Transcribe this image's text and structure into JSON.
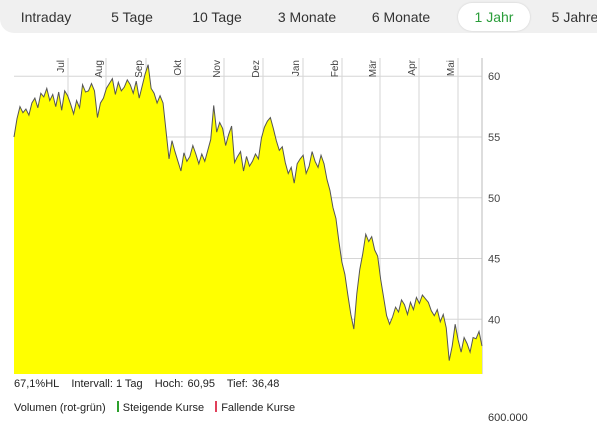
{
  "tabs": [
    {
      "label": "Intraday",
      "active": false
    },
    {
      "label": "5 Tage",
      "active": false
    },
    {
      "label": "10 Tage",
      "active": false
    },
    {
      "label": "3 Monate",
      "active": false
    },
    {
      "label": "6 Monate",
      "active": false
    },
    {
      "label": "1 Jahr",
      "active": true
    },
    {
      "label": "5 Jahre",
      "active": false
    }
  ],
  "stats": {
    "hl": "67,1%HL",
    "interval": "Intervall: 1 Tag",
    "hoch_label": "Hoch:",
    "hoch_value": "60,95",
    "tief_label": "Tief:",
    "tief_value": "36,48"
  },
  "volume": {
    "label": "Volumen (rot-grün)",
    "rising": "Steigende Kurse",
    "falling": "Fallende Kurse",
    "rising_color": "#2ca02c",
    "falling_color": "#e0405a",
    "axis_label": "600.000"
  },
  "colors": {
    "area_fill": "#ffff00",
    "line": "#555555",
    "accent": "#2a9d3a"
  },
  "chart_data": {
    "type": "area",
    "months": [
      "Jul",
      "Aug",
      "Sep",
      "Okt",
      "Nov",
      "Dez",
      "Jan",
      "Feb",
      "Mär",
      "Apr",
      "Mai"
    ],
    "yticks": [
      40,
      45,
      50,
      55,
      60
    ],
    "ylim": [
      35.5,
      61.5
    ],
    "grid": true,
    "y": [
      55.0,
      56.5,
      57.5,
      57.0,
      57.3,
      56.8,
      57.8,
      58.2,
      57.4,
      58.6,
      58.3,
      59.0,
      58.0,
      58.5,
      57.5,
      58.7,
      57.2,
      58.8,
      58.4,
      57.7,
      56.9,
      58.0,
      57.4,
      59.3,
      58.7,
      58.8,
      59.4,
      58.8,
      56.6,
      57.8,
      58.2,
      59.0,
      59.4,
      59.8,
      58.5,
      59.5,
      58.8,
      59.1,
      59.7,
      59.3,
      58.6,
      59.6,
      58.2,
      59.2,
      60.2,
      60.95,
      59.0,
      58.6,
      57.8,
      58.4,
      57.8,
      55.5,
      53.2,
      54.7,
      53.8,
      53.0,
      52.2,
      53.7,
      53.0,
      53.4,
      54.3,
      53.6,
      52.8,
      53.6,
      53.0,
      53.9,
      54.8,
      57.6,
      55.4,
      56.2,
      55.7,
      54.3,
      55.2,
      55.9,
      52.9,
      53.4,
      53.8,
      52.2,
      53.4,
      52.6,
      53.0,
      53.6,
      53.2,
      54.9,
      55.8,
      56.3,
      56.6,
      55.7,
      54.7,
      53.9,
      54.2,
      52.9,
      52.0,
      52.5,
      51.2,
      52.8,
      53.2,
      53.5,
      52.0,
      52.6,
      53.8,
      53.0,
      52.5,
      53.5,
      52.8,
      51.5,
      50.6,
      49.2,
      48.3,
      46.4,
      44.7,
      43.7,
      42.0,
      40.4,
      39.2,
      42.1,
      44.1,
      45.4,
      47.0,
      46.4,
      46.8,
      45.7,
      45.2,
      43.3,
      41.8,
      40.3,
      39.6,
      40.2,
      41.0,
      40.6,
      41.6,
      41.2,
      40.4,
      41.4,
      40.8,
      41.8,
      41.3,
      42.0,
      41.7,
      41.4,
      40.7,
      40.3,
      40.8,
      39.8,
      40.4,
      39.3,
      36.6,
      37.8,
      39.6,
      38.3,
      37.3,
      38.5,
      38.0,
      37.3,
      38.5,
      38.4,
      39.0,
      37.8
    ]
  }
}
